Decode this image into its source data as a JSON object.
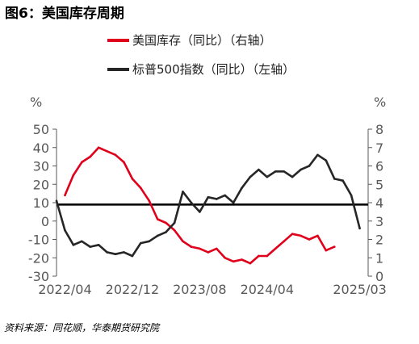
{
  "figure_title": "图6：美国库存周期",
  "source_note": "资料来源：同花顺，华泰期货研究院",
  "chart_data": {
    "type": "line",
    "title": "美国库存周期",
    "left_unit": "%",
    "right_unit": "%",
    "ylim_left": [
      -30,
      50
    ],
    "ylim_right": [
      0,
      8
    ],
    "yticks_left": [
      "50",
      "40",
      "30",
      "20",
      "10",
      "0",
      "-10",
      "-20",
      "-30"
    ],
    "yticks_right": [
      "8",
      "7",
      "6",
      "5",
      "4",
      "3",
      "2",
      "1",
      "0"
    ],
    "x_tick_labels": [
      "2022/04",
      "2022/12",
      "2023/08",
      "2024/04",
      "2025/03"
    ],
    "x_tick_positions": [
      "2022-04",
      "2022-12",
      "2023-08",
      "2024-04",
      "2025-03"
    ],
    "x_range": [
      "2022-03",
      "2025-04"
    ],
    "grid": false,
    "legend_position": "top",
    "reference_line": {
      "axis": "right",
      "value": 3.9,
      "color": "#000000"
    },
    "series": [
      {
        "name": "美国库存（同比）（右轴）",
        "axis": "right",
        "color": "#e0001b",
        "x": [
          "2022-04",
          "2022-05",
          "2022-06",
          "2022-07",
          "2022-08",
          "2022-09",
          "2022-10",
          "2022-11",
          "2022-12",
          "2023-01",
          "2023-02",
          "2023-03",
          "2023-04",
          "2023-05",
          "2023-06",
          "2023-07",
          "2023-08",
          "2023-09",
          "2023-10",
          "2023-11",
          "2023-12",
          "2024-01",
          "2024-02",
          "2024-03",
          "2024-04",
          "2024-05",
          "2024-06",
          "2024-07",
          "2024-08",
          "2024-09",
          "2024-10",
          "2024-11",
          "2024-12"
        ],
        "y": [
          4.4,
          5.5,
          6.2,
          6.5,
          7.0,
          6.8,
          6.6,
          6.2,
          5.3,
          4.8,
          4.1,
          3.1,
          2.9,
          2.5,
          1.9,
          1.6,
          1.5,
          1.3,
          1.5,
          1.0,
          0.8,
          0.9,
          0.7,
          1.1,
          1.1,
          1.5,
          1.9,
          2.3,
          2.2,
          2.0,
          2.2,
          1.4,
          1.6
        ]
      },
      {
        "name": "标普500指数（同比）（左轴）",
        "axis": "left",
        "color": "#262626",
        "x": [
          "2022-03",
          "2022-04",
          "2022-05",
          "2022-06",
          "2022-07",
          "2022-08",
          "2022-09",
          "2022-10",
          "2022-11",
          "2022-12",
          "2023-01",
          "2023-02",
          "2023-03",
          "2023-04",
          "2023-05",
          "2023-06",
          "2023-07",
          "2023-08",
          "2023-09",
          "2023-10",
          "2023-11",
          "2023-12",
          "2024-01",
          "2024-02",
          "2024-03",
          "2024-04",
          "2024-05",
          "2024-06",
          "2024-07",
          "2024-08",
          "2024-09",
          "2024-10",
          "2024-11",
          "2024-12",
          "2025-01",
          "2025-02",
          "2025-03"
        ],
        "y": [
          11,
          -5,
          -13,
          -11,
          -14,
          -13,
          -17,
          -18,
          -17,
          -19,
          -12,
          -11,
          -8,
          -6,
          -1,
          16,
          10,
          5,
          13,
          12,
          14,
          10,
          18,
          24,
          28,
          24,
          27,
          27,
          24,
          28,
          30,
          36,
          33,
          23,
          22,
          14,
          -4
        ]
      }
    ]
  }
}
